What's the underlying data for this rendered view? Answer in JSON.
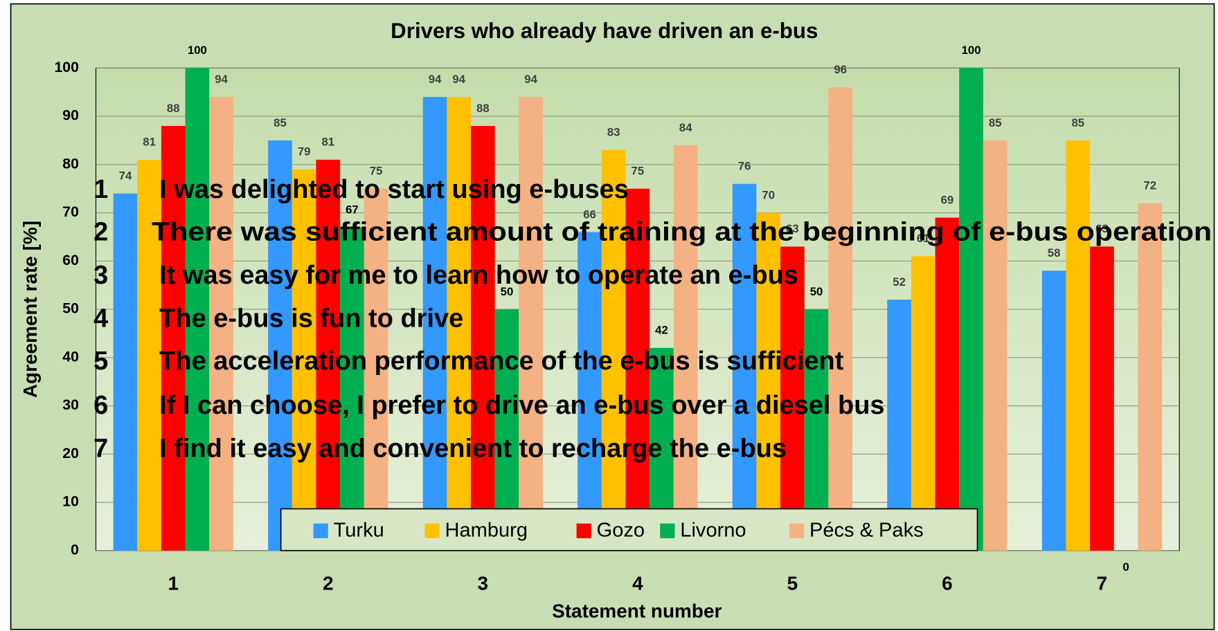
{
  "chart_data": {
    "type": "bar",
    "title": "Drivers who already have driven an e-bus",
    "x_label": "Statement  number",
    "y_label": "Agreement rate [%]",
    "categories": [
      "1",
      "2",
      "3",
      "4",
      "5",
      "6",
      "7"
    ],
    "series": [
      {
        "name": "Turku",
        "color": "#3399ff",
        "values": [
          74,
          85,
          94,
          66,
          76,
          52,
          58
        ]
      },
      {
        "name": "Hamburg",
        "color": "#ffc000",
        "values": [
          81,
          79,
          94,
          83,
          70,
          61,
          85
        ]
      },
      {
        "name": "Gozo",
        "color": "#ff0000",
        "values": [
          88,
          81,
          88,
          75,
          63,
          69,
          63
        ]
      },
      {
        "name": "Livorno",
        "color": "#00b050",
        "values": [
          100,
          67,
          50,
          42,
          50,
          100,
          0
        ]
      },
      {
        "name": "Pécs & Paks",
        "color": "#f4b183",
        "values": [
          94,
          75,
          94,
          84,
          96,
          85,
          72
        ]
      }
    ],
    "ylim": [
      0,
      100
    ],
    "yticks": [
      0,
      10,
      20,
      30,
      40,
      50,
      60,
      70,
      80,
      90,
      100
    ],
    "grid": true,
    "legend": "bottom",
    "statements": [
      {
        "number": "1",
        "text": "I was delighted to start using e-buses"
      },
      {
        "number": "2",
        "text": "There was sufficient amount of training at the beginning of e-bus operation"
      },
      {
        "number": "3",
        "text": "It was easy for me to learn how to operate an e-bus"
      },
      {
        "number": "4",
        "text": "The e-bus is fun to drive"
      },
      {
        "number": "5",
        "text": "The acceleration performance of the e-bus is sufficient"
      },
      {
        "number": "6",
        "text": "If I can choose, I prefer to drive an e-bus over a diesel bus"
      },
      {
        "number": "7",
        "text": "I find it easy and convenient to recharge the e-bus"
      }
    ]
  }
}
